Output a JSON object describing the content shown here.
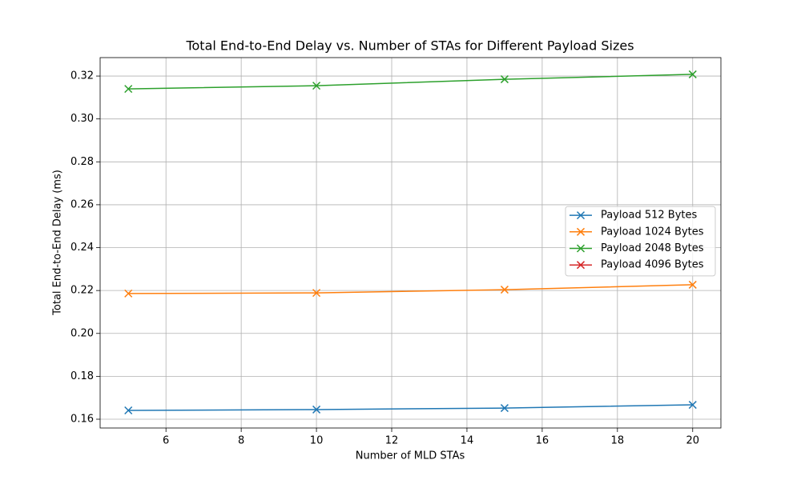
{
  "chart_data": {
    "type": "line",
    "title": "Total End-to-End Delay vs. Number of STAs for Different Payload Sizes",
    "xlabel": "Number of MLD STAs",
    "ylabel": "Total End-to-End Delay (ms)",
    "x": [
      5,
      10,
      15,
      20
    ],
    "series": [
      {
        "name": "Payload 512 Bytes",
        "color": "#1f77b4",
        "values": [
          0.1641,
          0.1645,
          0.1652,
          0.1667
        ]
      },
      {
        "name": "Payload 1024 Bytes",
        "color": "#ff7f0e",
        "values": [
          0.2186,
          0.2189,
          0.2204,
          0.2227
        ]
      },
      {
        "name": "Payload 2048 Bytes",
        "color": "#2ca02c",
        "values": [
          0.314,
          0.3155,
          0.3185,
          0.3208
        ]
      },
      {
        "name": "Payload 4096 Bytes",
        "color": "#d62728",
        "values": [
          null,
          null,
          null,
          null
        ]
      }
    ],
    "xlim": [
      4.25,
      20.75
    ],
    "xticks": [
      6,
      8,
      10,
      12,
      14,
      16,
      18,
      20
    ],
    "ylim": [
      0.1559,
      0.3286
    ],
    "yticks": [
      {
        "value": 0.16,
        "label": "0.16"
      },
      {
        "value": 0.18,
        "label": "0.18"
      },
      {
        "value": 0.2,
        "label": "0.20"
      },
      {
        "value": 0.22,
        "label": "0.22"
      },
      {
        "value": 0.24,
        "label": "0.24"
      },
      {
        "value": 0.26,
        "label": "0.26"
      },
      {
        "value": 0.28,
        "label": "0.28"
      },
      {
        "value": 0.3,
        "label": "0.30"
      },
      {
        "value": 0.32,
        "label": "0.32"
      }
    ],
    "grid": true,
    "legend": "center right",
    "marker": "x"
  }
}
